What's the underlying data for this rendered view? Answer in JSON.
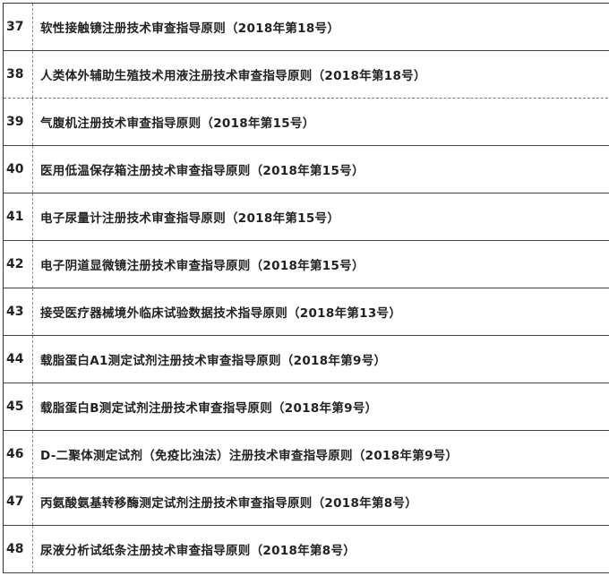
{
  "rows": [
    {
      "num": "37",
      "title": "软性接触镜注册技术审查指导原则（2018年第18号）"
    },
    {
      "num": "38",
      "title": "人类体外辅助生殖技术用液注册技术审查指导原则（2018年第18号）"
    },
    {
      "num": "39",
      "title": "气腹机注册技术审查指导原则（2018年第15号）"
    },
    {
      "num": "40",
      "title": "医用低温保存箱注册技术审查指导原则（2018年第15号）"
    },
    {
      "num": "41",
      "title": "电子尿量计注册技术审查指导原则（2018年第15号）"
    },
    {
      "num": "42",
      "title": "电子阴道显微镜注册技术审查指导原则（2018年第15号）"
    },
    {
      "num": "43",
      "title": "接受医疗器械境外临床试验数据技术指导原则（2018年第13号）"
    },
    {
      "num": "44",
      "title": "载脂蛋白A1测定试剂注册技术审查指导原则（2018年第9号）"
    },
    {
      "num": "45",
      "title": "载脂蛋白B测定试剂注册技术审查指导原则（2018年第9号）"
    },
    {
      "num": "46",
      "title": "D-二聚体测定试剂（免疫比浊法）注册技术审查指导原则（2018年第9号）"
    },
    {
      "num": "47",
      "title": "丙氨酸氨基转移酶测定试剂注册技术审查指导原则（2018年第8号）"
    },
    {
      "num": "48",
      "title": "尿液分析试纸条注册技术审查指导原则（2018年第8号）"
    }
  ]
}
